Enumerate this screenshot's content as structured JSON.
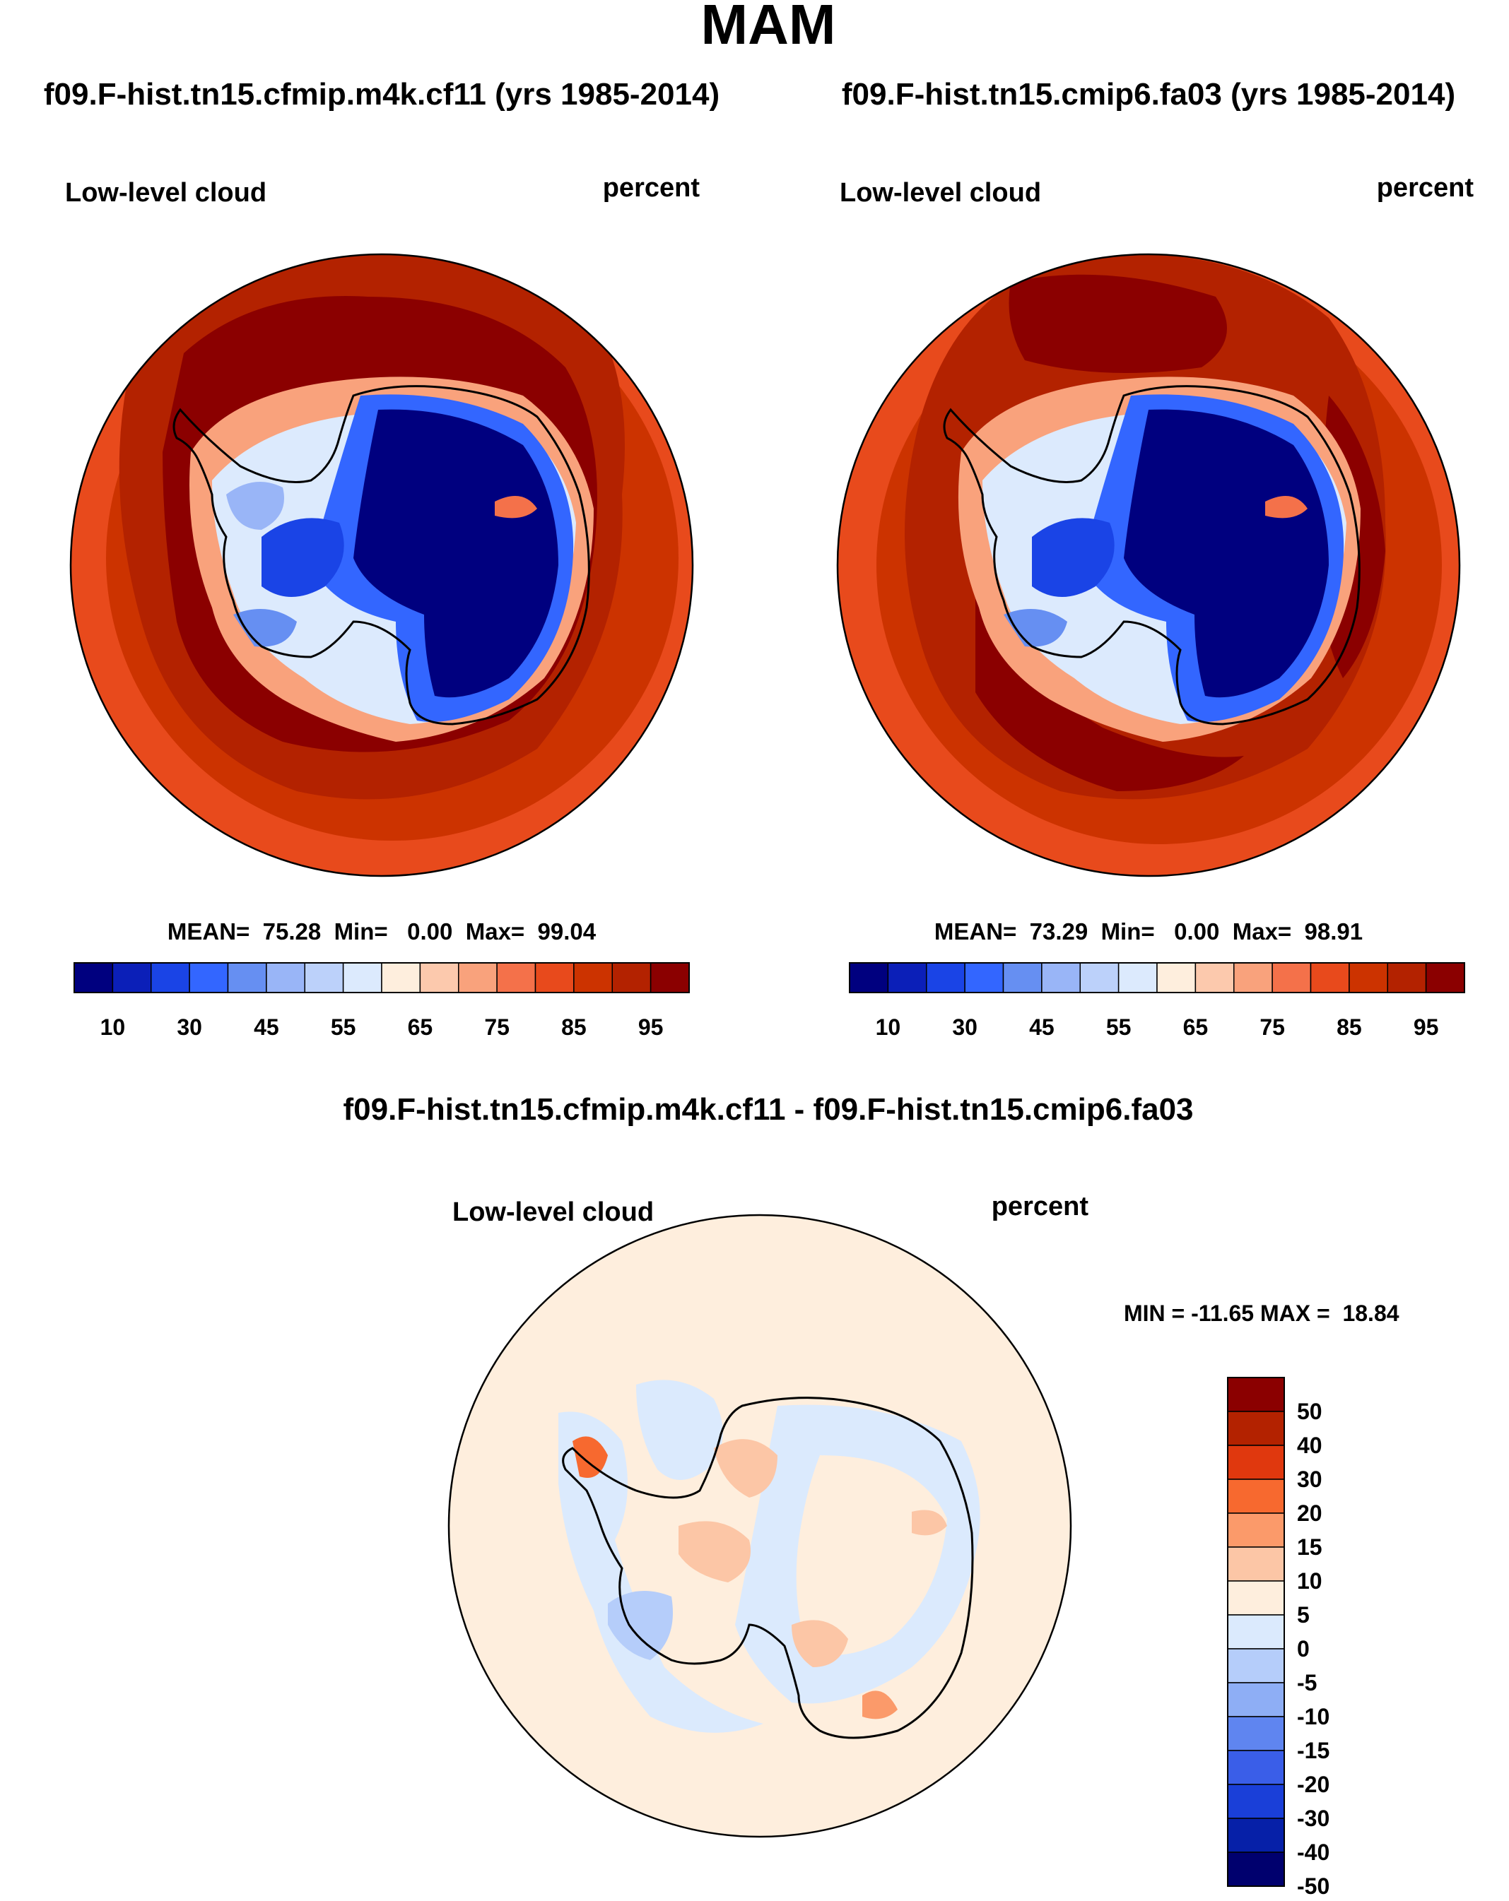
{
  "title": "MAM",
  "panels": [
    {
      "id": "left",
      "case_title": "f09.F-hist.tn15.cfmip.m4k.cf11 (yrs 1985-2014)",
      "variable": "Low-level cloud",
      "units": "percent",
      "stats": {
        "label": "MEAN=  75.28  Min=   0.00  Max=  99.04",
        "mean": 75.28,
        "min": 0.0,
        "max": 99.04
      }
    },
    {
      "id": "right",
      "case_title": "f09.F-hist.tn15.cmip6.fa03 (yrs 1985-2014)",
      "variable": "Low-level cloud",
      "units": "percent",
      "stats": {
        "label": "MEAN=  73.29  Min=   0.00  Max=  98.91",
        "mean": 73.29,
        "min": 0.0,
        "max": 98.91
      }
    }
  ],
  "absolute_colorbar": {
    "colors": [
      "#00007f",
      "#0b1fb8",
      "#1a44e6",
      "#3366ff",
      "#668ff2",
      "#99b5f7",
      "#bcd1fa",
      "#dceafd",
      "#feeedd",
      "#fcc9ad",
      "#f9a27c",
      "#f4714a",
      "#e84a1c",
      "#cc3300",
      "#b32200",
      "#8b0000"
    ],
    "tick_labels": [
      "10",
      "30",
      "45",
      "55",
      "65",
      "75",
      "85",
      "95"
    ]
  },
  "difference_panel": {
    "title": "f09.F-hist.tn15.cfmip.m4k.cf11 - f09.F-hist.tn15.cmip6.fa03",
    "variable": "Low-level cloud",
    "units": "percent",
    "stats": {
      "label": "MIN = -11.65 MAX =  18.84",
      "min": -11.65,
      "max": 18.84
    },
    "colorbar": {
      "colors": [
        "#8b0000",
        "#b32200",
        "#e0380e",
        "#f7692f",
        "#fb9a6a",
        "#fcc6a6",
        "#feeedd",
        "#dbeafd",
        "#b5cdfa",
        "#8eaef5",
        "#5f85f0",
        "#3a5ee8",
        "#1a3fd8",
        "#0620a8",
        "#00006e"
      ],
      "tick_labels": [
        "50",
        "40",
        "30",
        "20",
        "15",
        "10",
        "5",
        "0",
        "-5",
        "-10",
        "-15",
        "-20",
        "-30",
        "-40",
        "-50"
      ]
    }
  },
  "colors": {
    "ocean_dark": "#8b0000",
    "ocean_mid": "#b32200",
    "ocean_light": "#cc3300",
    "ocean_outer": "#e84a1c",
    "ice_blue": "#00007f",
    "diff_bg": "#feeedd",
    "diff_neg": "#dbeafd",
    "diff_pos": "#fcc6a6"
  }
}
